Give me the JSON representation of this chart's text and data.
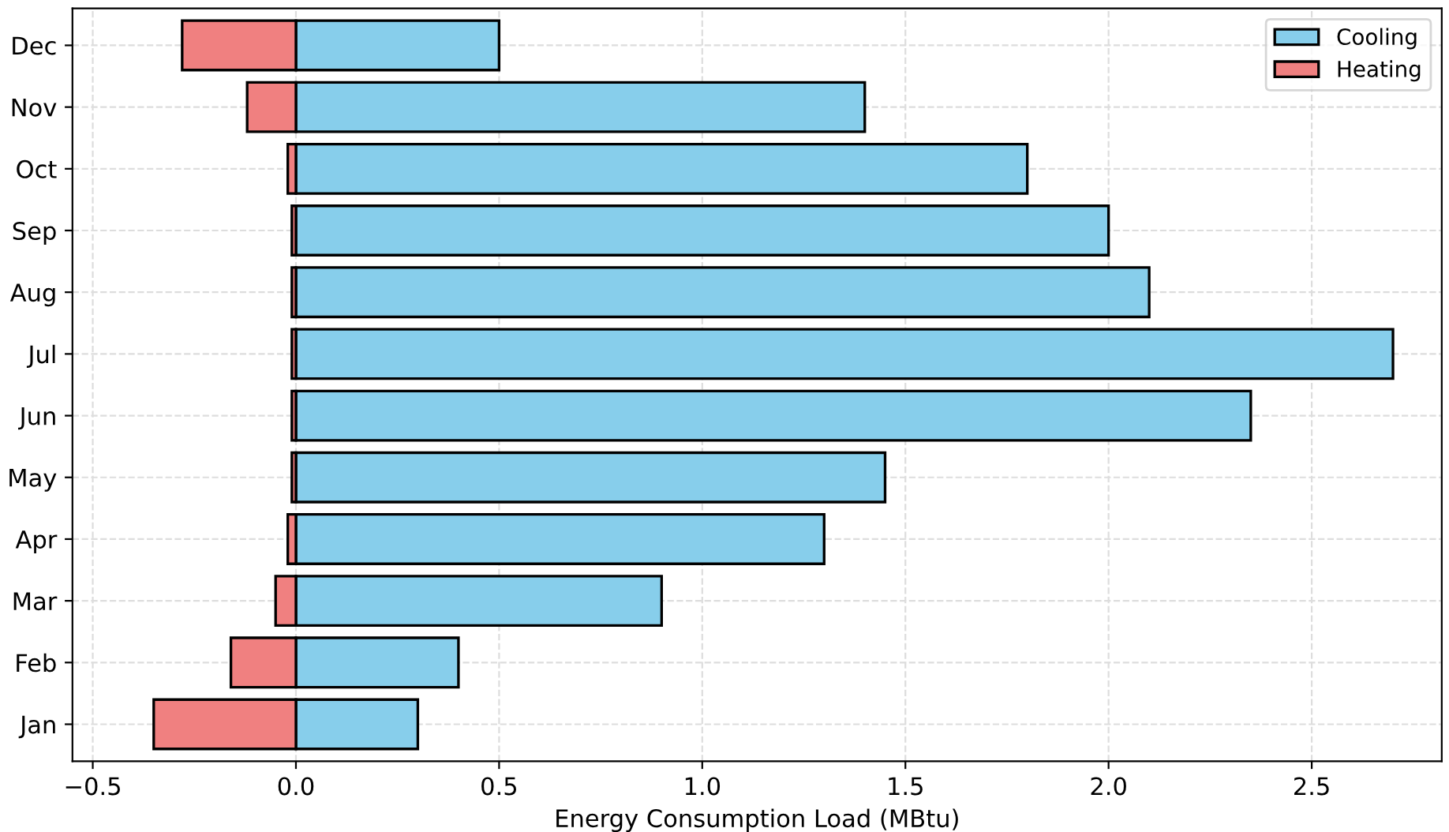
{
  "chart_data": {
    "type": "bar",
    "orientation": "horizontal",
    "xlabel": "Energy Consumption Load (MBtu)",
    "categories": [
      "Dec",
      "Nov",
      "Oct",
      "Sep",
      "Aug",
      "Jul",
      "Jun",
      "May",
      "Apr",
      "Mar",
      "Feb",
      "Jan"
    ],
    "series": [
      {
        "name": "Cooling",
        "color": "#87ceeb",
        "values": [
          0.5,
          1.4,
          1.8,
          2.0,
          2.1,
          2.7,
          2.35,
          1.45,
          1.3,
          0.9,
          0.4,
          0.3
        ]
      },
      {
        "name": "Heating",
        "color": "#f08080",
        "values": [
          -0.28,
          -0.12,
          -0.02,
          -0.01,
          -0.01,
          -0.01,
          -0.01,
          -0.01,
          -0.02,
          -0.05,
          -0.16,
          -0.35
        ]
      }
    ],
    "stacked": true,
    "xlim": [
      -0.55,
      2.82
    ],
    "xticks": [
      {
        "value": -0.5,
        "label": "−0.5"
      },
      {
        "value": 0,
        "label": "0.0"
      },
      0.5,
      {
        "value": 1,
        "label": "1.0"
      },
      1.5,
      {
        "value": 2,
        "label": "2.0"
      },
      2.5
    ],
    "grid": true,
    "legend": "top right"
  }
}
